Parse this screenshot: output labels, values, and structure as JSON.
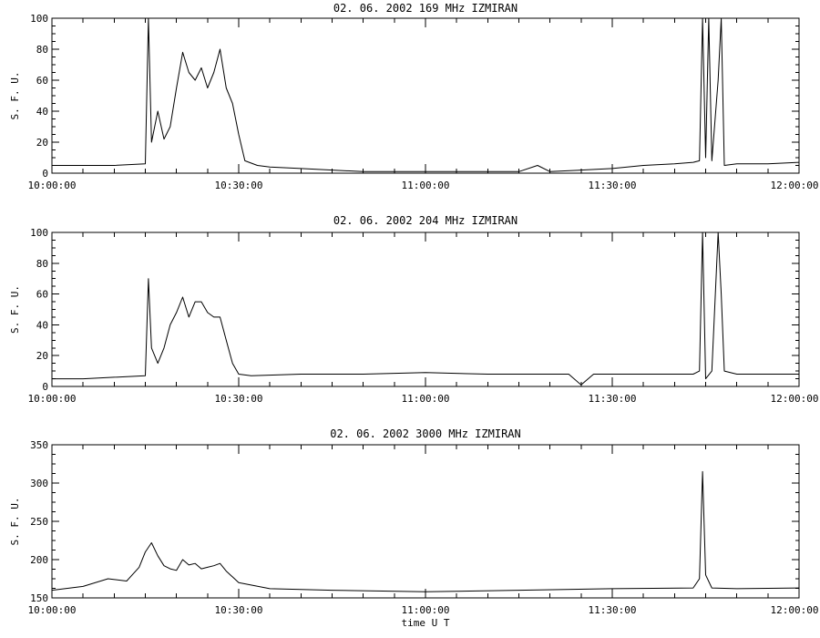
{
  "figure": {
    "xlabel": "time  U T"
  },
  "chart_data": [
    {
      "type": "line",
      "title": "02.  06.  2002    169  MHz    IZMIRAN",
      "ylabel": "S. F. U.",
      "xlabel": "",
      "xlim": [
        "10:00:00",
        "12:00:00"
      ],
      "ylim": [
        0,
        100
      ],
      "grid": false,
      "x_ticks": [
        "10:00:00",
        "10:30:00",
        "11:00:00",
        "11:30:00",
        "12:00:00"
      ],
      "y_ticks": [
        "0",
        "20",
        "40",
        "60",
        "80",
        "100"
      ],
      "series": [
        {
          "x": [
            "10:00:00",
            "10:05:00",
            "10:10:00",
            "10:15:00",
            "10:15:30",
            "10:16:00",
            "10:17:00",
            "10:18:00",
            "10:19:00",
            "10:20:00",
            "10:21:00",
            "10:22:00",
            "10:23:00",
            "10:24:00",
            "10:25:00",
            "10:26:00",
            "10:27:00",
            "10:28:00",
            "10:29:00",
            "10:30:00",
            "10:31:00",
            "10:33:00",
            "10:35:00",
            "10:40:00",
            "10:45:00",
            "10:50:00",
            "10:55:00",
            "11:00:00",
            "11:05:00",
            "11:10:00",
            "11:15:00",
            "11:18:00",
            "11:20:00",
            "11:25:00",
            "11:30:00",
            "11:35:00",
            "11:40:00",
            "11:43:00",
            "11:44:00",
            "11:44:30",
            "11:45:00",
            "11:45:30",
            "11:46:00",
            "11:47:00",
            "11:47:30",
            "11:48:00",
            "11:50:00",
            "11:55:00",
            "12:00:00"
          ],
          "values": [
            5,
            5,
            5,
            6,
            100,
            20,
            40,
            22,
            30,
            55,
            78,
            65,
            60,
            68,
            55,
            65,
            80,
            55,
            45,
            25,
            8,
            5,
            4,
            3,
            2,
            1,
            1,
            1,
            1,
            1,
            1,
            5,
            1,
            2,
            3,
            5,
            6,
            7,
            8,
            100,
            10,
            100,
            8,
            60,
            100,
            5,
            6,
            6,
            7
          ]
        }
      ]
    },
    {
      "type": "line",
      "title": "02.  06.  2002    204  MHz    IZMIRAN",
      "ylabel": "S. F. U.",
      "xlabel": "",
      "xlim": [
        "10:00:00",
        "12:00:00"
      ],
      "ylim": [
        0,
        100
      ],
      "grid": false,
      "x_ticks": [
        "10:00:00",
        "10:30:00",
        "11:00:00",
        "11:30:00",
        "12:00:00"
      ],
      "y_ticks": [
        "0",
        "20",
        "40",
        "60",
        "80",
        "100"
      ],
      "series": [
        {
          "x": [
            "10:00:00",
            "10:05:00",
            "10:10:00",
            "10:15:00",
            "10:15:30",
            "10:16:00",
            "10:17:00",
            "10:18:00",
            "10:19:00",
            "10:20:00",
            "10:21:00",
            "10:22:00",
            "10:23:00",
            "10:24:00",
            "10:25:00",
            "10:26:00",
            "10:27:00",
            "10:28:00",
            "10:29:00",
            "10:30:00",
            "10:32:00",
            "10:40:00",
            "10:50:00",
            "11:00:00",
            "11:10:00",
            "11:20:00",
            "11:23:00",
            "11:25:00",
            "11:27:00",
            "11:30:00",
            "11:40:00",
            "11:43:00",
            "11:44:00",
            "11:44:30",
            "11:45:00",
            "11:46:00",
            "11:47:00",
            "11:47:30",
            "11:48:00",
            "11:50:00",
            "11:55:00",
            "12:00:00"
          ],
          "values": [
            5,
            5,
            6,
            7,
            70,
            25,
            15,
            25,
            40,
            48,
            58,
            45,
            55,
            55,
            48,
            45,
            45,
            30,
            15,
            8,
            7,
            8,
            8,
            9,
            8,
            8,
            8,
            1,
            8,
            8,
            8,
            8,
            10,
            100,
            5,
            10,
            100,
            60,
            10,
            8,
            8,
            8
          ]
        }
      ]
    },
    {
      "type": "line",
      "title": "02.  06.  2002    3000  MHz    IZMIRAN",
      "ylabel": "S. F. U.",
      "xlabel": "time  U T",
      "xlim": [
        "10:00:00",
        "12:00:00"
      ],
      "ylim": [
        150,
        350
      ],
      "grid": false,
      "x_ticks": [
        "10:00:00",
        "10:30:00",
        "11:00:00",
        "11:30:00",
        "12:00:00"
      ],
      "y_ticks": [
        "150",
        "200",
        "250",
        "300",
        "350"
      ],
      "series": [
        {
          "x": [
            "10:00:00",
            "10:05:00",
            "10:09:00",
            "10:12:00",
            "10:14:00",
            "10:15:00",
            "10:16:00",
            "10:17:00",
            "10:18:00",
            "10:19:00",
            "10:20:00",
            "10:21:00",
            "10:22:00",
            "10:23:00",
            "10:24:00",
            "10:25:00",
            "10:26:00",
            "10:27:00",
            "10:28:00",
            "10:30:00",
            "10:35:00",
            "10:45:00",
            "11:00:00",
            "11:15:00",
            "11:30:00",
            "11:43:00",
            "11:44:00",
            "11:44:30",
            "11:45:00",
            "11:46:00",
            "11:50:00",
            "12:00:00"
          ],
          "values": [
            160,
            165,
            175,
            172,
            190,
            210,
            222,
            205,
            192,
            188,
            186,
            200,
            193,
            195,
            188,
            190,
            192,
            195,
            185,
            170,
            162,
            160,
            158,
            160,
            162,
            163,
            175,
            315,
            180,
            163,
            162,
            163
          ]
        }
      ]
    }
  ]
}
